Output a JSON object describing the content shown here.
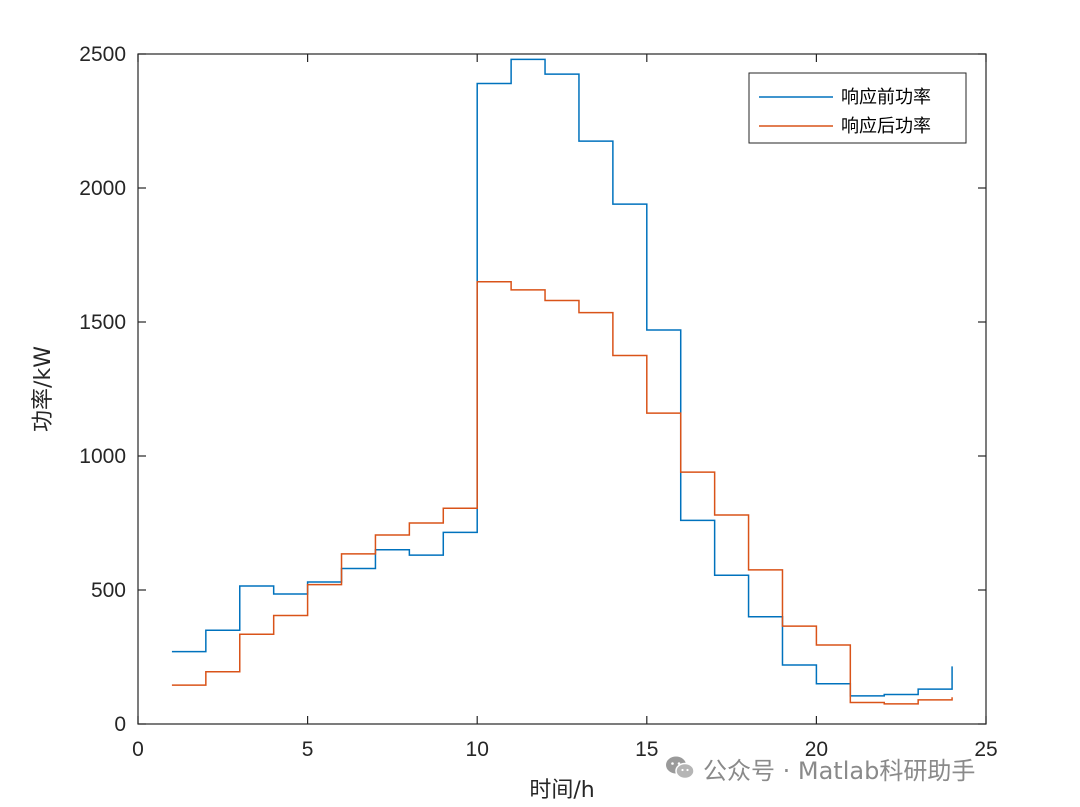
{
  "chart_data": {
    "type": "line",
    "step": "post",
    "xlabel": "时间/h",
    "ylabel": "功率/kW",
    "xlim": [
      0,
      25
    ],
    "ylim": [
      0,
      2500
    ],
    "xticks": [
      0,
      5,
      10,
      15,
      20,
      25
    ],
    "yticks": [
      0,
      500,
      1000,
      1500,
      2000,
      2500
    ],
    "grid": false,
    "legend_position": "top-right",
    "x": [
      1,
      2,
      3,
      4,
      5,
      6,
      7,
      8,
      9,
      10,
      11,
      12,
      13,
      14,
      15,
      16,
      17,
      18,
      19,
      20,
      21,
      22,
      23,
      24
    ],
    "series": [
      {
        "name": "响应前功率",
        "color": "#0072BD",
        "values": [
          270,
          350,
          515,
          485,
          530,
          580,
          650,
          630,
          715,
          2390,
          2480,
          2425,
          2175,
          1940,
          1470,
          760,
          555,
          400,
          220,
          150,
          105,
          110,
          130,
          215
        ]
      },
      {
        "name": "响应后功率",
        "color": "#D95319",
        "values": [
          145,
          195,
          335,
          405,
          520,
          635,
          705,
          750,
          805,
          1650,
          1620,
          1580,
          1535,
          1375,
          1160,
          940,
          780,
          575,
          365,
          295,
          80,
          75,
          90,
          100
        ]
      }
    ]
  },
  "watermark": {
    "text": "公众号 · Matlab科研助手",
    "icon": "wechat-icon"
  }
}
